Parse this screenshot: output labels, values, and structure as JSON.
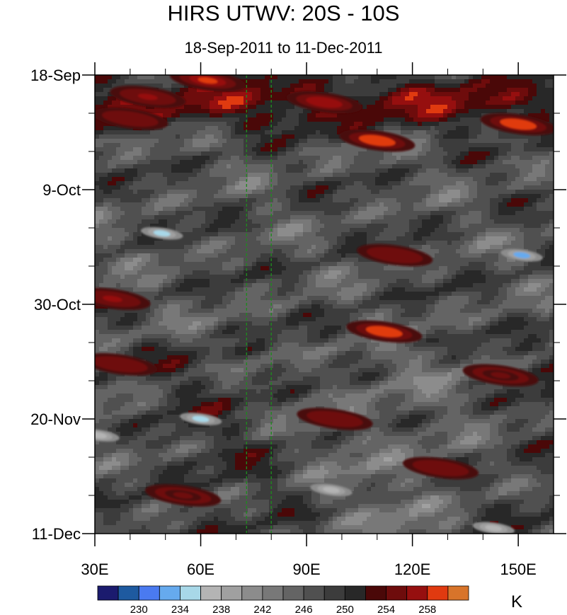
{
  "chart_data": {
    "type": "heatmap",
    "title": "HIRS UTWV: 20S - 10S",
    "subtitle": "18-Sep-2011 to 11-Dec-2011",
    "xlabel": "",
    "ylabel": "",
    "x_range": [
      30,
      160
    ],
    "y_range": [
      "18-Sep-2011",
      "11-Dec-2011"
    ],
    "x_ticks": [
      30,
      60,
      90,
      120,
      150
    ],
    "x_tick_labels": [
      "30E",
      "60E",
      "90E",
      "120E",
      "150E"
    ],
    "y_tick_labels": [
      "18-Sep",
      "9-Oct",
      "30-Oct",
      "20-Nov",
      "11-Dec"
    ],
    "units": "K",
    "colorbar": {
      "levels": [
        228,
        230,
        232,
        234,
        236,
        238,
        240,
        242,
        244,
        246,
        248,
        250,
        252,
        254,
        256,
        258,
        260
      ],
      "labels": [
        "230",
        "234",
        "238",
        "242",
        "246",
        "250",
        "254",
        "258"
      ],
      "label_values": [
        230,
        234,
        238,
        242,
        246,
        250,
        254,
        258
      ],
      "colors": [
        "#1b1b6e",
        "#1e5aa0",
        "#4a7af0",
        "#66aaee",
        "#a8d8e8",
        "#b4b4b4",
        "#a0a0a0",
        "#8c8c8c",
        "#787878",
        "#646464",
        "#505050",
        "#3c3c3c",
        "#282828",
        "#4a0808",
        "#6e0c0c",
        "#960f0f",
        "#e03a10",
        "#d8742a"
      ]
    },
    "reference_lines": [
      {
        "x": 73,
        "style": "dashed",
        "color": "#1f8a1f"
      },
      {
        "x": 80,
        "style": "dashed",
        "color": "#1f8a1f"
      }
    ],
    "warm_features": [
      {
        "lon": 45,
        "day": 4,
        "value": 256
      },
      {
        "lon": 62,
        "day": 1,
        "value": 258
      },
      {
        "lon": 95,
        "day": 5,
        "value": 257
      },
      {
        "lon": 110,
        "day": 12,
        "value": 259
      },
      {
        "lon": 150,
        "day": 9,
        "value": 259
      },
      {
        "lon": 40,
        "day": 8,
        "value": 255
      },
      {
        "lon": 115,
        "day": 33,
        "value": 255
      },
      {
        "lon": 35,
        "day": 41,
        "value": 256
      },
      {
        "lon": 112,
        "day": 47,
        "value": 259
      },
      {
        "lon": 37,
        "day": 53,
        "value": 255
      },
      {
        "lon": 145,
        "day": 55,
        "value": 254
      },
      {
        "lon": 98,
        "day": 63,
        "value": 255
      },
      {
        "lon": 128,
        "day": 72,
        "value": 255
      },
      {
        "lon": 55,
        "day": 77,
        "value": 254
      }
    ],
    "cold_features": [
      {
        "lon": 49,
        "day": 29,
        "value": 235
      },
      {
        "lon": 151,
        "day": 33,
        "value": 233
      },
      {
        "lon": 60,
        "day": 63,
        "value": 235
      },
      {
        "lon": 31,
        "day": 66,
        "value": 236
      },
      {
        "lon": 97,
        "day": 76,
        "value": 236
      },
      {
        "lon": 143,
        "day": 83,
        "value": 236
      }
    ]
  }
}
